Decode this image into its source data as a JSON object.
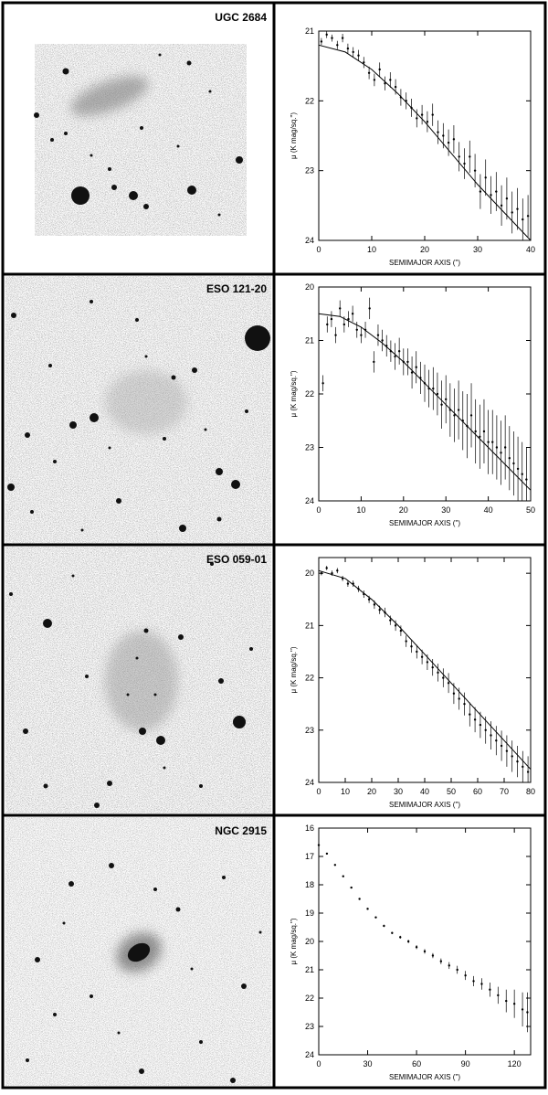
{
  "panels": [
    {
      "galaxy": "UGC 2684"
    },
    {
      "galaxy": "ESO 121-20"
    },
    {
      "galaxy": "ESO 059-01"
    },
    {
      "galaxy": "NGC 2915"
    }
  ],
  "chart_data": [
    {
      "type": "scatter",
      "xlabel": "SEMIMAJOR AXIS (\")",
      "ylabel": "μ (K mag/sq.\")",
      "xlim": [
        0,
        40
      ],
      "ylim": [
        24,
        21
      ],
      "yaxis": "inverted",
      "xticks": [
        0,
        10,
        20,
        30,
        40
      ],
      "yticks": [
        21,
        22,
        23,
        24
      ],
      "series": [
        {
          "kind": "points_with_errorbars",
          "x": [
            0.5,
            1.5,
            2.5,
            3.5,
            4.5,
            5.5,
            6.5,
            7.5,
            8.5,
            9.5,
            10.5,
            11.5,
            12.5,
            13.5,
            14.5,
            15.5,
            16.5,
            17.5,
            18.5,
            19.5,
            20.5,
            21.5,
            22.5,
            23.5,
            24.5,
            25.5,
            26.5,
            27.5,
            28.5,
            29.5,
            30.5,
            31.5,
            32.5,
            33.5,
            34.5,
            35.5,
            36.5,
            37.5,
            38.5,
            39.5
          ],
          "y": [
            21.15,
            21.05,
            21.1,
            21.2,
            21.1,
            21.25,
            21.3,
            21.35,
            21.45,
            21.6,
            21.7,
            21.55,
            21.75,
            21.7,
            21.8,
            21.95,
            22.0,
            22.1,
            22.25,
            22.2,
            22.3,
            22.2,
            22.45,
            22.5,
            22.6,
            22.55,
            22.8,
            22.9,
            22.8,
            23.0,
            23.3,
            23.1,
            23.35,
            23.3,
            23.5,
            23.4,
            23.6,
            23.55,
            23.7,
            23.65
          ],
          "yerr": [
            0.05,
            0.05,
            0.05,
            0.06,
            0.06,
            0.07,
            0.07,
            0.08,
            0.08,
            0.09,
            0.09,
            0.1,
            0.1,
            0.11,
            0.11,
            0.12,
            0.12,
            0.13,
            0.13,
            0.14,
            0.15,
            0.16,
            0.17,
            0.18,
            0.19,
            0.2,
            0.21,
            0.22,
            0.23,
            0.24,
            0.25,
            0.26,
            0.27,
            0.28,
            0.29,
            0.3,
            0.3,
            0.3,
            0.3,
            0.3
          ]
        },
        {
          "kind": "fit_curve",
          "x": [
            0,
            5,
            10,
            15,
            20,
            25,
            30,
            35,
            40
          ],
          "y": [
            21.2,
            21.3,
            21.55,
            21.9,
            22.3,
            22.75,
            23.2,
            23.6,
            24.0
          ]
        }
      ]
    },
    {
      "type": "scatter",
      "xlabel": "SEMIMAJOR AXIS (\")",
      "ylabel": "μ (K mag/sq.\")",
      "xlim": [
        0,
        50
      ],
      "ylim": [
        24,
        20
      ],
      "yaxis": "inverted",
      "xticks": [
        0,
        10,
        20,
        30,
        40,
        50
      ],
      "yticks": [
        20,
        21,
        22,
        23,
        24
      ],
      "series": [
        {
          "kind": "points_with_errorbars",
          "x": [
            1,
            2,
            3,
            4,
            5,
            6,
            7,
            8,
            9,
            10,
            11,
            12,
            13,
            14,
            15,
            16,
            17,
            18,
            19,
            20,
            21,
            22,
            23,
            24,
            25,
            26,
            27,
            28,
            29,
            30,
            31,
            32,
            33,
            34,
            35,
            36,
            37,
            38,
            39,
            40,
            41,
            42,
            43,
            44,
            45,
            46,
            47,
            48,
            49
          ],
          "y": [
            21.8,
            20.7,
            20.6,
            20.9,
            20.4,
            20.7,
            20.6,
            20.5,
            20.8,
            20.9,
            20.8,
            20.4,
            21.4,
            20.9,
            21.0,
            21.1,
            21.2,
            21.3,
            21.2,
            21.4,
            21.4,
            21.6,
            21.5,
            21.7,
            21.8,
            21.9,
            21.9,
            22.0,
            22.2,
            22.1,
            22.3,
            22.4,
            22.3,
            22.5,
            22.6,
            22.4,
            22.7,
            22.8,
            22.7,
            22.9,
            22.9,
            23.0,
            23.1,
            23.0,
            23.2,
            23.3,
            23.4,
            23.5,
            23.6
          ],
          "yerr": [
            0.15,
            0.15,
            0.15,
            0.15,
            0.15,
            0.15,
            0.15,
            0.15,
            0.15,
            0.15,
            0.15,
            0.2,
            0.2,
            0.2,
            0.2,
            0.2,
            0.2,
            0.25,
            0.25,
            0.25,
            0.25,
            0.3,
            0.3,
            0.3,
            0.35,
            0.35,
            0.4,
            0.4,
            0.45,
            0.45,
            0.5,
            0.5,
            0.55,
            0.55,
            0.6,
            0.6,
            0.6,
            0.6,
            0.6,
            0.6,
            0.6,
            0.6,
            0.6,
            0.6,
            0.6,
            0.6,
            0.6,
            0.6,
            0.6
          ]
        },
        {
          "kind": "fit_curve",
          "x": [
            0,
            5,
            10,
            15,
            20,
            25,
            30,
            35,
            40,
            45,
            50
          ],
          "y": [
            20.5,
            20.55,
            20.75,
            21.05,
            21.4,
            21.8,
            22.2,
            22.6,
            23.0,
            23.4,
            23.8
          ]
        }
      ]
    },
    {
      "type": "scatter",
      "xlabel": "SEMIMAJOR AXIS (\")",
      "ylabel": "μ (K mag/sq.\")",
      "xlim": [
        0,
        80
      ],
      "ylim": [
        24,
        19.7
      ],
      "yaxis": "inverted",
      "xticks": [
        0,
        10,
        20,
        30,
        40,
        50,
        60,
        70,
        80
      ],
      "yticks": [
        20,
        21,
        22,
        23,
        24
      ],
      "series": [
        {
          "kind": "points_with_errorbars",
          "x": [
            1,
            3,
            5,
            7,
            9,
            11,
            13,
            15,
            17,
            19,
            21,
            23,
            25,
            27,
            29,
            31,
            33,
            35,
            37,
            39,
            41,
            43,
            45,
            47,
            49,
            51,
            53,
            55,
            57,
            59,
            61,
            63,
            65,
            67,
            69,
            71,
            73,
            75,
            77,
            79
          ],
          "y": [
            20.0,
            19.9,
            20.0,
            19.95,
            20.1,
            20.2,
            20.2,
            20.3,
            20.4,
            20.5,
            20.6,
            20.7,
            20.75,
            20.9,
            21.0,
            21.1,
            21.3,
            21.4,
            21.5,
            21.6,
            21.7,
            21.8,
            21.9,
            22.0,
            22.1,
            22.3,
            22.4,
            22.5,
            22.7,
            22.8,
            22.9,
            23.0,
            23.1,
            23.2,
            23.3,
            23.4,
            23.5,
            23.6,
            23.7,
            23.8
          ],
          "yerr": [
            0.04,
            0.04,
            0.05,
            0.05,
            0.05,
            0.06,
            0.06,
            0.06,
            0.07,
            0.07,
            0.08,
            0.08,
            0.09,
            0.09,
            0.1,
            0.1,
            0.11,
            0.12,
            0.13,
            0.14,
            0.15,
            0.16,
            0.17,
            0.18,
            0.19,
            0.2,
            0.21,
            0.22,
            0.23,
            0.24,
            0.25,
            0.26,
            0.27,
            0.28,
            0.29,
            0.3,
            0.3,
            0.3,
            0.3,
            0.3
          ]
        },
        {
          "kind": "fit_curve",
          "x": [
            0,
            10,
            20,
            30,
            40,
            50,
            60,
            70,
            80
          ],
          "y": [
            19.95,
            20.1,
            20.5,
            21.0,
            21.55,
            22.1,
            22.65,
            23.2,
            23.75
          ]
        }
      ]
    },
    {
      "type": "scatter",
      "xlabel": "SEMIMAJOR AXIS (\")",
      "ylabel": "μ (K mag/sq.\")",
      "xlim": [
        0,
        130
      ],
      "ylim": [
        24,
        16
      ],
      "yaxis": "inverted",
      "xticks": [
        0,
        30,
        60,
        90,
        120
      ],
      "yticks": [
        16,
        17,
        18,
        19,
        20,
        21,
        22,
        23,
        24
      ],
      "series": [
        {
          "kind": "points_with_errorbars",
          "x": [
            0,
            5,
            10,
            15,
            20,
            25,
            30,
            35,
            40,
            45,
            50,
            55,
            60,
            65,
            70,
            75,
            80,
            85,
            90,
            95,
            100,
            105,
            110,
            115,
            120,
            125,
            128
          ],
          "y": [
            16.6,
            16.9,
            17.3,
            17.7,
            18.1,
            18.5,
            18.85,
            19.15,
            19.45,
            19.7,
            19.85,
            20.0,
            20.2,
            20.35,
            20.5,
            20.7,
            20.85,
            21.0,
            21.2,
            21.4,
            21.5,
            21.7,
            21.9,
            22.1,
            22.2,
            22.4,
            22.5
          ],
          "yerr": [
            0.02,
            0.02,
            0.02,
            0.02,
            0.02,
            0.03,
            0.03,
            0.03,
            0.04,
            0.04,
            0.05,
            0.06,
            0.07,
            0.08,
            0.09,
            0.1,
            0.12,
            0.14,
            0.16,
            0.18,
            0.2,
            0.25,
            0.3,
            0.4,
            0.5,
            0.6,
            0.7
          ]
        }
      ]
    }
  ]
}
